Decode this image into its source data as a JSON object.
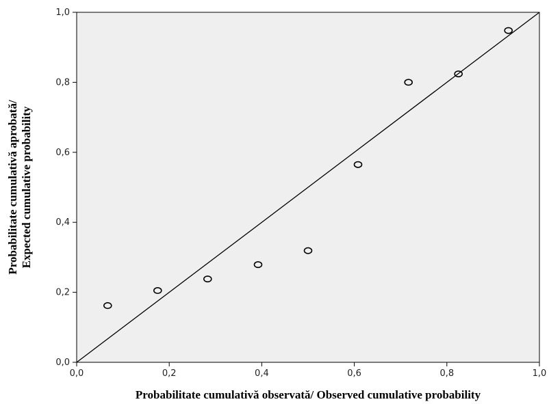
{
  "chart_data": {
    "type": "scatter",
    "title": "",
    "xlabel": "Probabilitate cumulativă observată/ Observed cumulative probability",
    "ylabel_line1": "Probabilitate cumulativă aprobată/",
    "ylabel_line2": "Expected cumulative probability",
    "xlim": [
      0.0,
      1.0
    ],
    "ylim": [
      0.0,
      1.0
    ],
    "xticks": [
      "0,0",
      "0,2",
      "0,4",
      "0,6",
      "0,8",
      "1,0"
    ],
    "yticks": [
      "0,0",
      "0,2",
      "0,4",
      "0,6",
      "0,8",
      "1,0"
    ],
    "reference_line": [
      [
        0,
        0
      ],
      [
        1,
        1
      ]
    ],
    "points": [
      {
        "x": 0.067,
        "y": 0.162
      },
      {
        "x": 0.175,
        "y": 0.205
      },
      {
        "x": 0.283,
        "y": 0.238
      },
      {
        "x": 0.392,
        "y": 0.279
      },
      {
        "x": 0.5,
        "y": 0.319
      },
      {
        "x": 0.608,
        "y": 0.565
      },
      {
        "x": 0.717,
        "y": 0.8
      },
      {
        "x": 0.825,
        "y": 0.824
      },
      {
        "x": 0.933,
        "y": 0.948
      }
    ],
    "grid": false,
    "colors": {
      "plot_background": "#efefef",
      "marker": "#000000",
      "line": "#000000"
    }
  }
}
